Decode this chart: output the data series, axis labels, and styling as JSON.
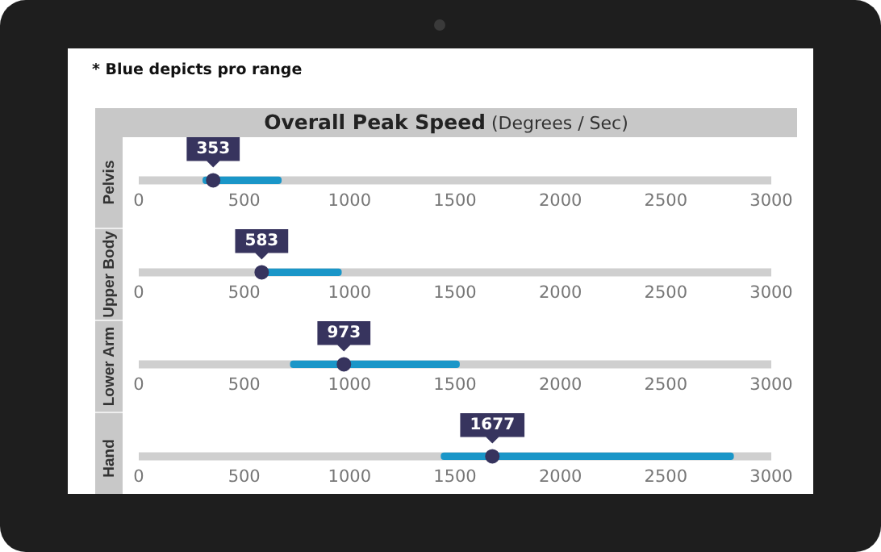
{
  "chart_data": [
    {
      "type": "bar",
      "orientation": "horizontal",
      "title": "Overall Peak Speed",
      "subtitle": "(Degrees / Sec)",
      "annotations": [
        "* Blue depicts pro range"
      ],
      "categories": [
        "Pelvis"
      ],
      "xlim": [
        0,
        3000
      ],
      "xticks": [
        0,
        500,
        1000,
        1500,
        2000,
        2500,
        3000
      ],
      "series": [
        {
          "color": "#1a96c8",
          "base": [
            305
          ],
          "values": [
            370
          ]
        },
        {
          "type": "scatter",
          "color": "#37345e",
          "values": [
            353
          ],
          "value_labels": [
            "353"
          ]
        }
      ]
    },
    {
      "type": "bar",
      "orientation": "horizontal",
      "categories": [
        "Upper Body"
      ],
      "xlim": [
        0,
        3000
      ],
      "xticks": [
        0,
        500,
        1000,
        1500,
        2000,
        2500,
        3000
      ],
      "series": [
        {
          "color": "#1a96c8",
          "base": [
            595
          ],
          "values": [
            365
          ]
        },
        {
          "type": "scatter",
          "color": "#37345e",
          "values": [
            583
          ],
          "value_labels": [
            "583"
          ]
        }
      ]
    },
    {
      "type": "bar",
      "orientation": "horizontal",
      "categories": [
        "Lower Arm"
      ],
      "xlim": [
        0,
        3000
      ],
      "xticks": [
        0,
        500,
        1000,
        1500,
        2000,
        2500,
        3000
      ],
      "series": [
        {
          "color": "#1a96c8",
          "base": [
            720
          ],
          "values": [
            800
          ]
        },
        {
          "type": "scatter",
          "color": "#37345e",
          "values": [
            973
          ],
          "value_labels": [
            "973"
          ]
        }
      ]
    },
    {
      "type": "bar",
      "orientation": "horizontal",
      "categories": [
        "Hand"
      ],
      "xlim": [
        0,
        3000
      ],
      "xticks": [
        0,
        500,
        1000,
        1500,
        2000,
        2500,
        3000
      ],
      "series": [
        {
          "color": "#1a96c8",
          "base": [
            1435
          ],
          "values": [
            1385
          ]
        },
        {
          "type": "scatter",
          "color": "#37345e",
          "values": [
            1677
          ],
          "value_labels": [
            "1677"
          ]
        }
      ]
    }
  ]
}
